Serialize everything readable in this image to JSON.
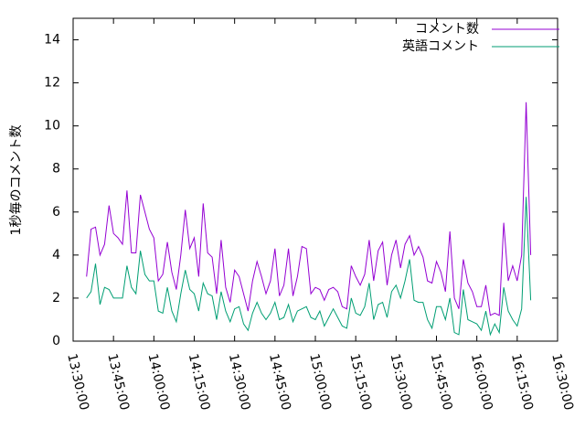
{
  "chart_data": {
    "type": "line",
    "ylabel": "1秒毎のコメント数",
    "legend": "top right",
    "xlim": [
      "13:30:00",
      "16:30:00"
    ],
    "xticks": [
      "13:30:00",
      "13:45:00",
      "14:00:00",
      "14:15:00",
      "14:30:00",
      "14:45:00",
      "15:00:00",
      "15:15:00",
      "15:30:00",
      "15:45:00",
      "16:00:00",
      "16:15:00",
      "16:30:00"
    ],
    "ylim": [
      0,
      15
    ],
    "yticks": [
      0,
      2,
      4,
      6,
      8,
      10,
      12,
      14
    ],
    "x": [
      "13:35:00",
      "13:36:40",
      "13:38:20",
      "13:40:00",
      "13:41:40",
      "13:43:20",
      "13:45:00",
      "13:46:40",
      "13:48:20",
      "13:50:00",
      "13:51:40",
      "13:53:20",
      "13:55:00",
      "13:56:40",
      "13:58:20",
      "14:00:00",
      "14:01:40",
      "14:03:20",
      "14:05:00",
      "14:06:40",
      "14:08:20",
      "14:10:00",
      "14:11:40",
      "14:13:20",
      "14:15:00",
      "14:16:40",
      "14:18:20",
      "14:20:00",
      "14:21:40",
      "14:23:20",
      "14:25:00",
      "14:26:40",
      "14:28:20",
      "14:30:00",
      "14:31:40",
      "14:33:20",
      "14:35:00",
      "14:36:40",
      "14:38:20",
      "14:40:00",
      "14:41:40",
      "14:43:20",
      "14:45:00",
      "14:46:40",
      "14:48:20",
      "14:50:00",
      "14:51:40",
      "14:53:20",
      "14:55:00",
      "14:56:40",
      "14:58:20",
      "15:00:00",
      "15:01:40",
      "15:03:20",
      "15:05:00",
      "15:06:40",
      "15:08:20",
      "15:10:00",
      "15:11:40",
      "15:13:20",
      "15:15:00",
      "15:16:40",
      "15:18:20",
      "15:20:00",
      "15:21:40",
      "15:23:20",
      "15:25:00",
      "15:26:40",
      "15:28:20",
      "15:30:00",
      "15:31:40",
      "15:33:20",
      "15:35:00",
      "15:36:40",
      "15:38:20",
      "15:40:00",
      "15:41:40",
      "15:43:20",
      "15:45:00",
      "15:46:40",
      "15:48:20",
      "15:50:00",
      "15:51:40",
      "15:53:20",
      "15:55:00",
      "15:56:40",
      "15:58:20",
      "16:00:00",
      "16:01:40",
      "16:03:20",
      "16:05:00",
      "16:06:40",
      "16:08:20",
      "16:10:00",
      "16:11:40",
      "16:13:20",
      "16:15:00",
      "16:16:40",
      "16:18:20",
      "16:20:00"
    ],
    "series": [
      {
        "name": "コメント数",
        "color": "#9400d3",
        "values": [
          3.0,
          5.2,
          5.3,
          4.0,
          4.5,
          6.3,
          5.0,
          4.8,
          4.5,
          7.0,
          4.1,
          4.1,
          6.8,
          6.0,
          5.2,
          4.8,
          2.8,
          3.1,
          4.6,
          3.2,
          2.4,
          4.0,
          6.1,
          4.3,
          4.8,
          3.0,
          6.4,
          4.1,
          3.9,
          2.2,
          4.7,
          2.5,
          1.8,
          3.3,
          3.0,
          2.2,
          1.4,
          2.8,
          3.7,
          3.0,
          2.2,
          2.8,
          4.3,
          2.1,
          2.6,
          4.3,
          2.1,
          3.0,
          4.4,
          4.3,
          2.2,
          2.5,
          2.4,
          1.9,
          2.4,
          2.5,
          2.3,
          1.6,
          1.5,
          3.5,
          3.0,
          2.6,
          3.1,
          4.7,
          2.8,
          4.2,
          4.6,
          2.6,
          4.0,
          4.7,
          3.4,
          4.5,
          4.9,
          4.0,
          4.4,
          3.9,
          2.8,
          2.7,
          3.7,
          3.2,
          2.3,
          5.1,
          2.0,
          1.5,
          3.8,
          2.7,
          2.3,
          1.6,
          1.6,
          2.6,
          1.2,
          1.3,
          1.2,
          5.5,
          2.8,
          3.5,
          2.8,
          4.0,
          11.1,
          4.0
        ]
      },
      {
        "name": "英語コメント",
        "color": "#009e73",
        "values": [
          2.0,
          2.3,
          3.6,
          1.7,
          2.5,
          2.4,
          2.0,
          2.0,
          2.0,
          3.5,
          2.5,
          2.2,
          4.2,
          3.1,
          2.8,
          2.8,
          1.4,
          1.3,
          2.5,
          1.4,
          0.9,
          2.2,
          3.3,
          2.4,
          2.2,
          1.4,
          2.7,
          2.2,
          2.1,
          1.0,
          2.3,
          1.4,
          0.9,
          1.5,
          1.6,
          0.8,
          0.5,
          1.3,
          1.8,
          1.3,
          1.0,
          1.3,
          1.8,
          1.0,
          1.1,
          1.7,
          0.9,
          1.4,
          1.5,
          1.6,
          1.1,
          1.0,
          1.4,
          0.7,
          1.1,
          1.5,
          1.1,
          0.7,
          0.6,
          2.0,
          1.3,
          1.2,
          1.6,
          2.7,
          1.0,
          1.7,
          1.8,
          1.1,
          2.3,
          2.6,
          2.0,
          2.8,
          3.8,
          1.9,
          1.8,
          1.8,
          1.0,
          0.6,
          1.6,
          1.6,
          1.0,
          2.0,
          0.4,
          0.3,
          2.4,
          1.0,
          0.9,
          0.8,
          0.5,
          1.4,
          0.3,
          0.8,
          0.4,
          2.5,
          1.4,
          1.0,
          0.7,
          1.5,
          6.7,
          1.9
        ]
      }
    ]
  }
}
